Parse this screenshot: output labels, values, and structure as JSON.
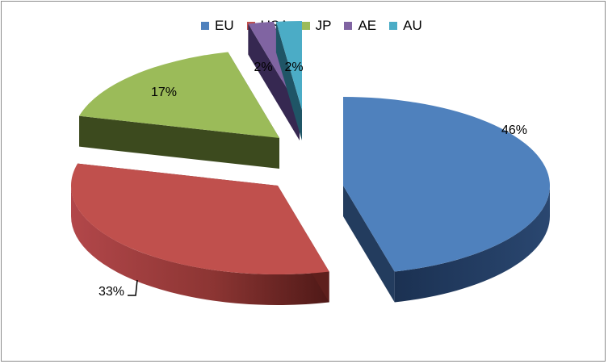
{
  "chart_data": {
    "type": "pie",
    "style": "3d-exploded",
    "categories": [
      "EU",
      "USA",
      "JP",
      "AE",
      "AU"
    ],
    "values": [
      46,
      33,
      17,
      2,
      2
    ],
    "labels": [
      "46%",
      "33%",
      "17%",
      "2%",
      "2%"
    ],
    "colors": [
      "#4F81BD",
      "#C0504D",
      "#9BBB59",
      "#8064A2",
      "#4BACC6"
    ],
    "side_colors": [
      "#233C5E",
      "#5E1F1C",
      "#3C4A1E",
      "#362851",
      "#1F5566"
    ],
    "legend_position": "top",
    "title": ""
  }
}
